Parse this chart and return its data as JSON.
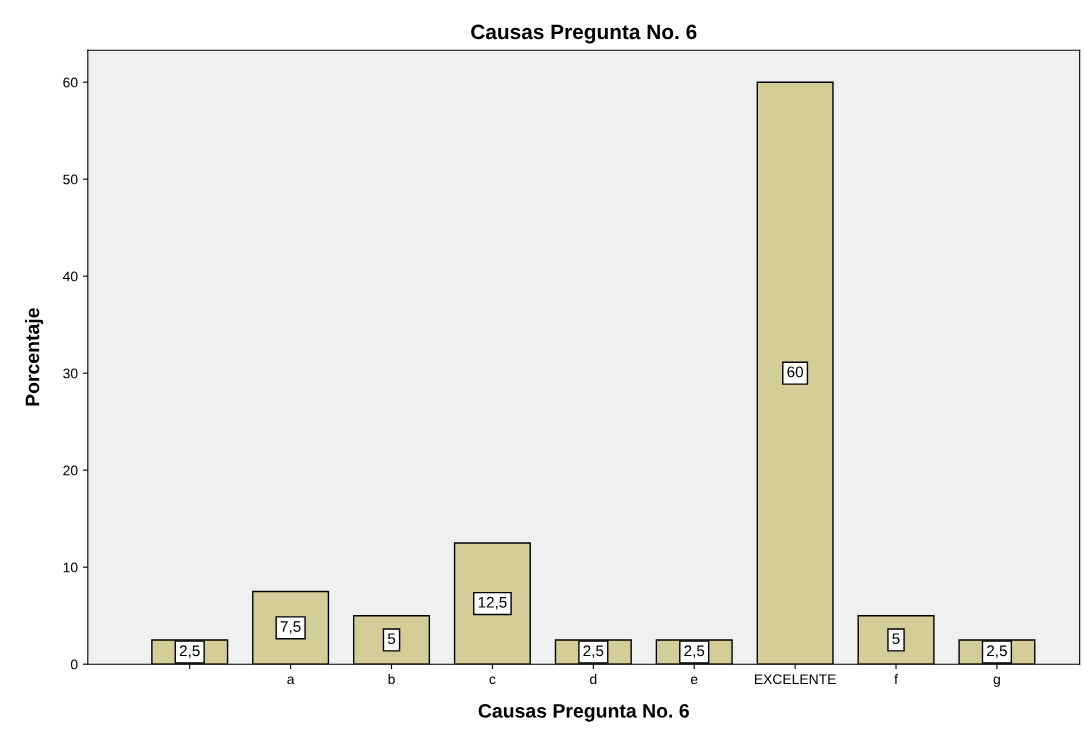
{
  "chart_data": {
    "type": "bar",
    "title": "Causas Pregunta No. 6",
    "xlabel": "Causas Pregunta No. 6",
    "ylabel": "Porcentaje",
    "categories": [
      null,
      "a",
      "b",
      "c",
      "d",
      "e",
      "EXCELENTE",
      "f",
      "g"
    ],
    "values": [
      2.5,
      7.5,
      5,
      12.5,
      2.5,
      2.5,
      60,
      5,
      2.5
    ],
    "value_labels": [
      "2,5",
      "7,5",
      "5",
      "12,5",
      "2,5",
      "2,5",
      "60",
      "5",
      "2,5"
    ],
    "color": "#d3ce97",
    "ylim": [
      0,
      63.3
    ],
    "yticks": [
      0,
      10,
      20,
      30,
      40,
      50,
      60
    ],
    "grid": false,
    "legend": false
  }
}
